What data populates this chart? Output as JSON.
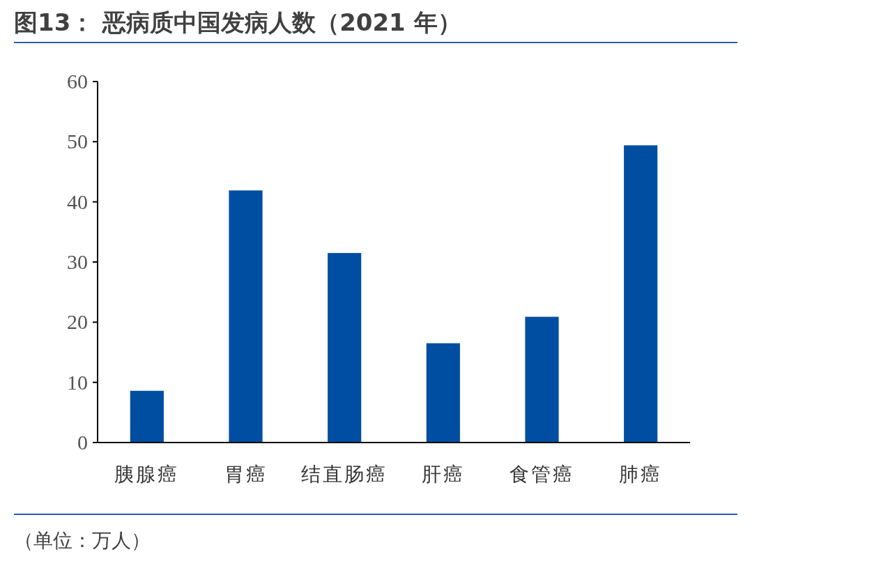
{
  "chart_data": {
    "type": "bar",
    "title": "图13：  恶病质中国发病人数（2021 年）",
    "categories": [
      "胰腺癌",
      "胃癌",
      "结直肠癌",
      "肝癌",
      "食管癌",
      "肺癌"
    ],
    "values": [
      8.6,
      41.9,
      31.5,
      16.5,
      20.9,
      49.4
    ],
    "color": "#004ea2",
    "ylim": [
      0,
      60
    ],
    "yticks": [
      0,
      10,
      20,
      30,
      40,
      50,
      60
    ],
    "annotations": [
      "（单位：万人）"
    ]
  }
}
